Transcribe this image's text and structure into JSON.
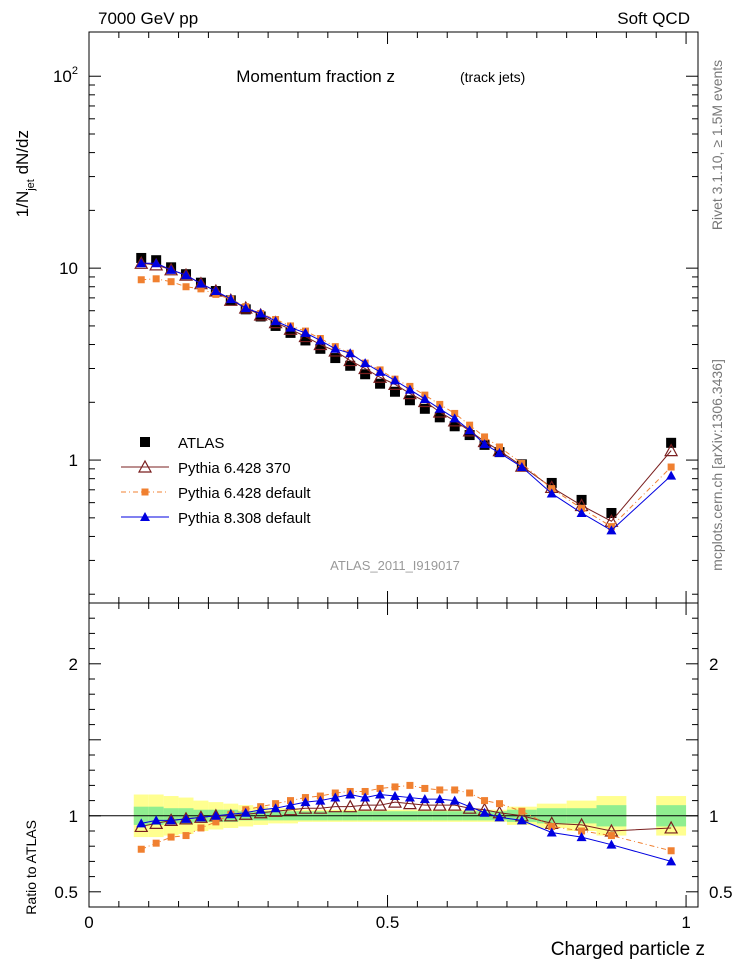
{
  "header": {
    "energy": "7000 GeV pp",
    "process": "Soft QCD"
  },
  "side_labels": {
    "rivet": "Rivet 3.1.10, ≥ 1.5M events",
    "mcplots": "mcplots.cern.ch [arXiv:1306.3436]"
  },
  "colors": {
    "atlas": "#000000",
    "py6_370": "#7a1f1f",
    "py6_default": "#f08030",
    "py8_default": "#0000e0",
    "band_inner": "#90ee90",
    "band_outer": "#ffff90"
  },
  "chart_data": [
    {
      "type": "line",
      "title": "Momentum fraction z",
      "subtitle": "(track jets)",
      "analysis_tag": "ATLAS_2011_I919017",
      "ylabel": "1/N_jet dN/dz",
      "yscale": "log",
      "ylim": [
        0.18,
        170
      ],
      "xlim": [
        0,
        1.02
      ],
      "yticks": [
        {
          "v": 1,
          "label": "1"
        },
        {
          "v": 10,
          "label": "10"
        },
        {
          "v": 100,
          "label": "10^2"
        }
      ],
      "legend_position": "lower-left",
      "x": [
        0.0875,
        0.1125,
        0.1375,
        0.1625,
        0.1875,
        0.2125,
        0.2375,
        0.2625,
        0.2875,
        0.3125,
        0.3375,
        0.3625,
        0.3875,
        0.4125,
        0.4375,
        0.4625,
        0.4875,
        0.5125,
        0.5375,
        0.5625,
        0.5875,
        0.6125,
        0.6375,
        0.6625,
        0.6875,
        0.725,
        0.775,
        0.825,
        0.875,
        0.975
      ],
      "series": [
        {
          "name": "ATLAS",
          "key": "atlas",
          "marker": "square",
          "values": [
            11.3,
            11.0,
            10.1,
            9.3,
            8.4,
            7.6,
            6.8,
            6.1,
            5.6,
            5.0,
            4.6,
            4.2,
            3.8,
            3.4,
            3.1,
            2.8,
            2.5,
            2.27,
            2.05,
            1.85,
            1.67,
            1.5,
            1.35,
            1.2,
            1.1,
            0.95,
            0.76,
            0.62,
            0.53,
            1.23
          ]
        },
        {
          "name": "Pythia 6.428 370",
          "key": "py6_370",
          "marker": "triangle-open",
          "values": [
            10.6,
            10.4,
            9.8,
            9.2,
            8.3,
            7.6,
            6.8,
            6.2,
            5.7,
            5.2,
            4.8,
            4.4,
            4.0,
            3.7,
            3.3,
            3.0,
            2.7,
            2.48,
            2.22,
            2.02,
            1.78,
            1.6,
            1.42,
            1.25,
            1.12,
            0.93,
            0.72,
            0.58,
            0.48,
            1.12
          ]
        },
        {
          "name": "Pythia 6.428 default",
          "key": "py6_default",
          "marker": "square-small",
          "values": [
            8.7,
            8.8,
            8.5,
            8.0,
            7.8,
            7.3,
            6.9,
            6.3,
            5.8,
            5.4,
            5.0,
            4.7,
            4.3,
            3.9,
            3.6,
            3.2,
            2.95,
            2.64,
            2.42,
            2.18,
            1.95,
            1.75,
            1.52,
            1.32,
            1.17,
            0.96,
            0.71,
            0.56,
            0.45,
            0.92
          ]
        },
        {
          "name": "Pythia 8.308 default",
          "key": "py8_default",
          "marker": "triangle-filled",
          "values": [
            10.6,
            10.6,
            9.8,
            9.2,
            8.3,
            7.6,
            6.9,
            6.2,
            5.8,
            5.3,
            4.9,
            4.6,
            4.2,
            3.8,
            3.6,
            3.2,
            2.88,
            2.6,
            2.33,
            2.08,
            1.85,
            1.65,
            1.43,
            1.21,
            1.09,
            0.92,
            0.67,
            0.53,
            0.43,
            0.83
          ]
        }
      ]
    },
    {
      "type": "line",
      "ylabel": "Ratio to ATLAS",
      "xlabel": "Charged particle z",
      "ylim": [
        0.4,
        2.4
      ],
      "xlim": [
        0,
        1.02
      ],
      "yticks": [
        {
          "v": 0.5,
          "label": "0.5"
        },
        {
          "v": 1,
          "label": "1"
        },
        {
          "v": 2,
          "label": "2"
        }
      ],
      "xticks": [
        {
          "v": 0,
          "label": "0"
        },
        {
          "v": 0.5,
          "label": "0.5"
        },
        {
          "v": 1,
          "label": "1"
        }
      ],
      "x": [
        0.0875,
        0.1125,
        0.1375,
        0.1625,
        0.1875,
        0.2125,
        0.2375,
        0.2625,
        0.2875,
        0.3125,
        0.3375,
        0.3625,
        0.3875,
        0.4125,
        0.4375,
        0.4625,
        0.4875,
        0.5125,
        0.5375,
        0.5625,
        0.5875,
        0.6125,
        0.6375,
        0.6625,
        0.6875,
        0.725,
        0.775,
        0.825,
        0.875,
        0.975
      ],
      "bands": {
        "x_lo": [
          0.075,
          0.1,
          0.125,
          0.15,
          0.175,
          0.2,
          0.225,
          0.25,
          0.275,
          0.3,
          0.325,
          0.35,
          0.375,
          0.4,
          0.425,
          0.45,
          0.475,
          0.5,
          0.525,
          0.55,
          0.575,
          0.6,
          0.625,
          0.65,
          0.675,
          0.7,
          0.75,
          0.8,
          0.85,
          0.95
        ],
        "x_hi": [
          0.1,
          0.125,
          0.15,
          0.175,
          0.2,
          0.225,
          0.25,
          0.275,
          0.3,
          0.325,
          0.35,
          0.375,
          0.4,
          0.425,
          0.45,
          0.475,
          0.5,
          0.525,
          0.55,
          0.575,
          0.6,
          0.625,
          0.65,
          0.675,
          0.7,
          0.75,
          0.8,
          0.85,
          0.9,
          1.0
        ],
        "inner": [
          0.06,
          0.06,
          0.05,
          0.05,
          0.04,
          0.04,
          0.04,
          0.03,
          0.03,
          0.03,
          0.03,
          0.03,
          0.03,
          0.03,
          0.03,
          0.03,
          0.03,
          0.03,
          0.03,
          0.03,
          0.03,
          0.03,
          0.03,
          0.03,
          0.03,
          0.04,
          0.05,
          0.05,
          0.07,
          0.07
        ],
        "outer": [
          0.14,
          0.14,
          0.13,
          0.12,
          0.1,
          0.09,
          0.08,
          0.07,
          0.06,
          0.05,
          0.05,
          0.04,
          0.04,
          0.04,
          0.04,
          0.04,
          0.04,
          0.04,
          0.04,
          0.04,
          0.04,
          0.04,
          0.04,
          0.04,
          0.04,
          0.06,
          0.08,
          0.1,
          0.13,
          0.13
        ]
      },
      "series": [
        {
          "name": "Pythia 6.428 370",
          "key": "py6_370",
          "marker": "triangle-open",
          "values": [
            0.93,
            0.95,
            0.97,
            0.98,
            0.99,
            1.0,
            1.0,
            1.01,
            1.02,
            1.03,
            1.04,
            1.05,
            1.05,
            1.06,
            1.06,
            1.07,
            1.07,
            1.09,
            1.08,
            1.07,
            1.07,
            1.07,
            1.05,
            1.04,
            1.02,
            1.0,
            0.95,
            0.94,
            0.9,
            0.92
          ]
        },
        {
          "name": "Pythia 6.428 default",
          "key": "py6_default",
          "marker": "square-small",
          "values": [
            0.78,
            0.82,
            0.86,
            0.87,
            0.92,
            0.96,
            1.01,
            1.04,
            1.06,
            1.08,
            1.1,
            1.12,
            1.13,
            1.15,
            1.16,
            1.16,
            1.18,
            1.19,
            1.2,
            1.18,
            1.17,
            1.17,
            1.15,
            1.1,
            1.08,
            1.03,
            0.93,
            0.9,
            0.87,
            0.77
          ]
        },
        {
          "name": "Pythia 8.308 default",
          "key": "py8_default",
          "marker": "triangle-filled",
          "values": [
            0.95,
            0.97,
            0.97,
            0.98,
            0.99,
            1.0,
            1.01,
            1.02,
            1.04,
            1.05,
            1.07,
            1.09,
            1.1,
            1.12,
            1.14,
            1.12,
            1.14,
            1.13,
            1.12,
            1.11,
            1.11,
            1.1,
            1.06,
            1.02,
            0.99,
            0.97,
            0.89,
            0.86,
            0.81,
            0.7
          ]
        }
      ]
    }
  ]
}
